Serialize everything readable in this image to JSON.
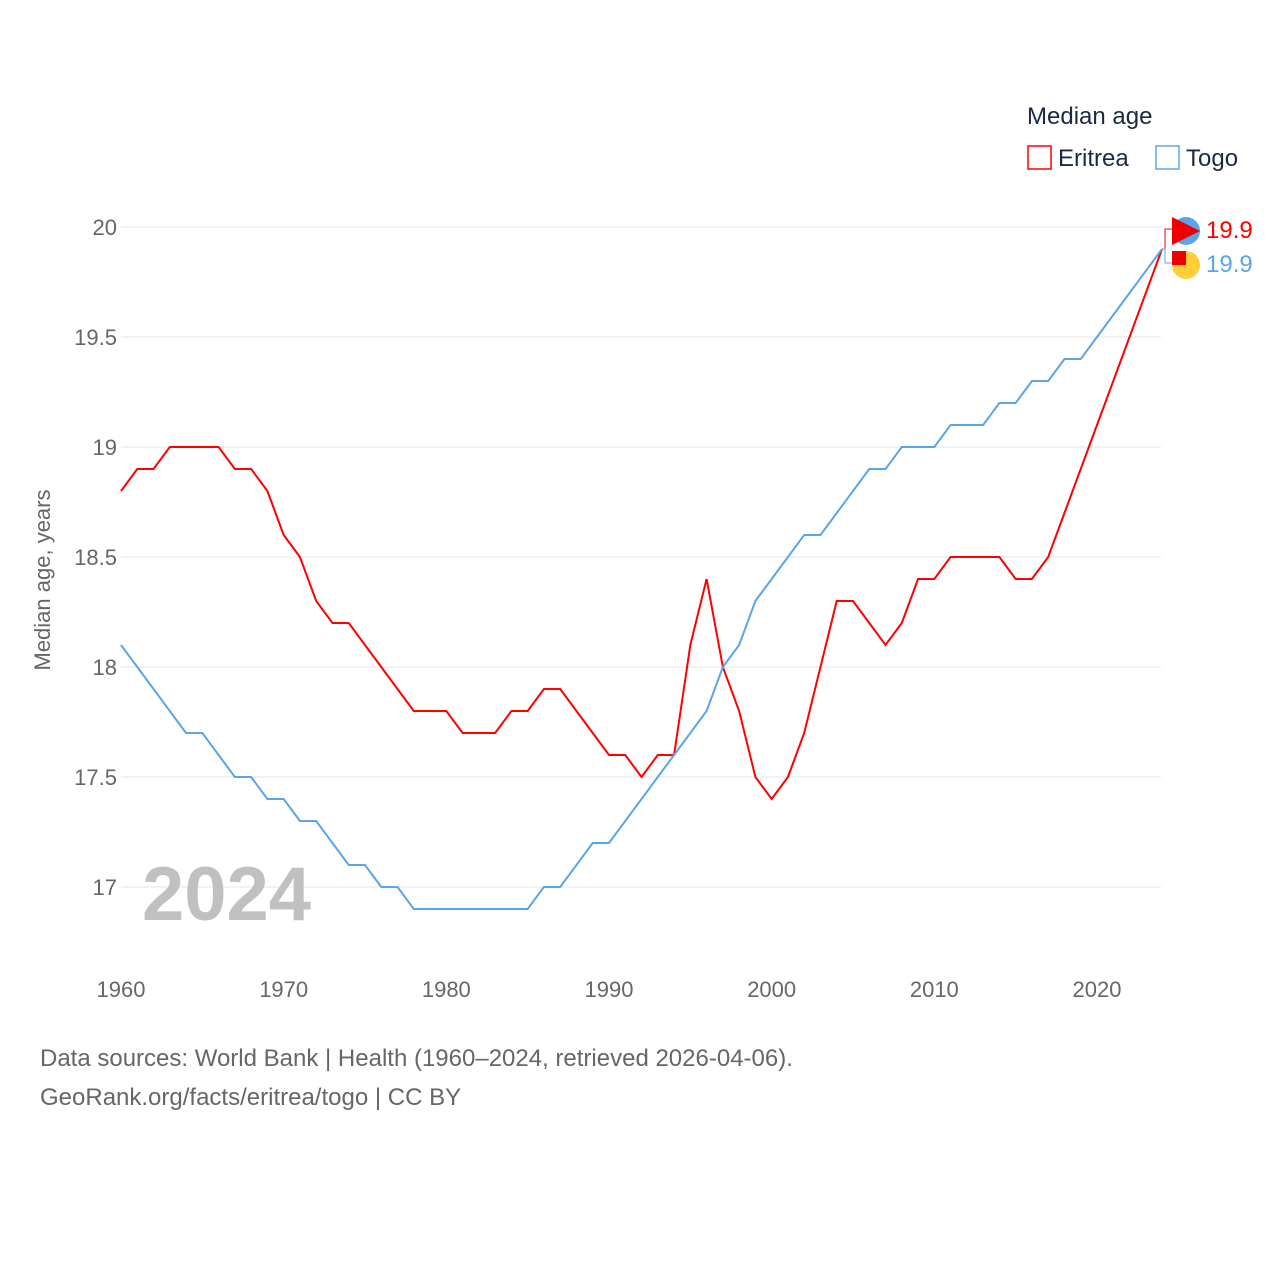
{
  "chart_data": {
    "type": "line",
    "title": "Median age",
    "ylabel": "Median age, years",
    "xlabel": "",
    "year_label": "2024",
    "xlim": [
      1960,
      2024
    ],
    "ylim": [
      16.8,
      20
    ],
    "x_ticks": [
      "1960",
      "1970",
      "1980",
      "1990",
      "2000",
      "2010",
      "2020"
    ],
    "y_ticks": [
      "17",
      "17.5",
      "18",
      "18.5",
      "19",
      "19.5",
      "20"
    ],
    "grid": true,
    "legend_position": "top-right",
    "x": [
      1960,
      1961,
      1962,
      1963,
      1964,
      1965,
      1966,
      1967,
      1968,
      1969,
      1970,
      1971,
      1972,
      1973,
      1974,
      1975,
      1976,
      1977,
      1978,
      1979,
      1980,
      1981,
      1982,
      1983,
      1984,
      1985,
      1986,
      1987,
      1988,
      1989,
      1990,
      1991,
      1992,
      1993,
      1994,
      1995,
      1996,
      1997,
      1998,
      1999,
      2000,
      2001,
      2002,
      2003,
      2004,
      2005,
      2006,
      2007,
      2008,
      2009,
      2010,
      2011,
      2012,
      2013,
      2014,
      2015,
      2016,
      2017,
      2018,
      2019,
      2020,
      2021,
      2022,
      2023,
      2024
    ],
    "series": [
      {
        "name": "Eritrea",
        "color": "#ff0000",
        "end_label": "19.9",
        "values": [
          18.8,
          18.9,
          18.9,
          19.0,
          19.0,
          19.0,
          19.0,
          18.9,
          18.9,
          18.8,
          18.6,
          18.5,
          18.3,
          18.2,
          18.2,
          18.1,
          18.0,
          17.9,
          17.8,
          17.8,
          17.8,
          17.7,
          17.7,
          17.7,
          17.8,
          17.8,
          17.9,
          17.9,
          17.8,
          17.7,
          17.6,
          17.6,
          17.5,
          17.6,
          17.6,
          18.1,
          18.4,
          18.0,
          17.8,
          17.5,
          17.4,
          17.5,
          17.7,
          18.0,
          18.3,
          18.3,
          18.2,
          18.1,
          18.2,
          18.4,
          18.4,
          18.5,
          18.5,
          18.5,
          18.5,
          18.4,
          18.4,
          18.5,
          18.7,
          18.9,
          19.1,
          19.3,
          19.5,
          19.7,
          19.9
        ]
      },
      {
        "name": "Togo",
        "color": "#5aa5ea",
        "end_label": "19.9",
        "values": [
          18.1,
          18.0,
          17.9,
          17.8,
          17.7,
          17.7,
          17.6,
          17.5,
          17.5,
          17.4,
          17.4,
          17.3,
          17.3,
          17.2,
          17.1,
          17.1,
          17.0,
          17.0,
          16.9,
          16.9,
          16.9,
          16.9,
          16.9,
          16.9,
          16.9,
          16.9,
          17.0,
          17.0,
          17.1,
          17.2,
          17.2,
          17.3,
          17.4,
          17.5,
          17.6,
          17.7,
          17.8,
          18.0,
          18.1,
          18.3,
          18.4,
          18.5,
          18.6,
          18.6,
          18.7,
          18.8,
          18.9,
          18.9,
          19.0,
          19.0,
          19.0,
          19.1,
          19.1,
          19.1,
          19.2,
          19.2,
          19.3,
          19.3,
          19.4,
          19.4,
          19.5,
          19.6,
          19.7,
          19.8,
          19.9
        ]
      }
    ]
  },
  "footer": {
    "line1": "Data sources: World Bank | Health (1960–2024, retrieved 2026-04-06).",
    "line2": "GeoRank.org/facts/eritrea/togo | CC BY"
  }
}
